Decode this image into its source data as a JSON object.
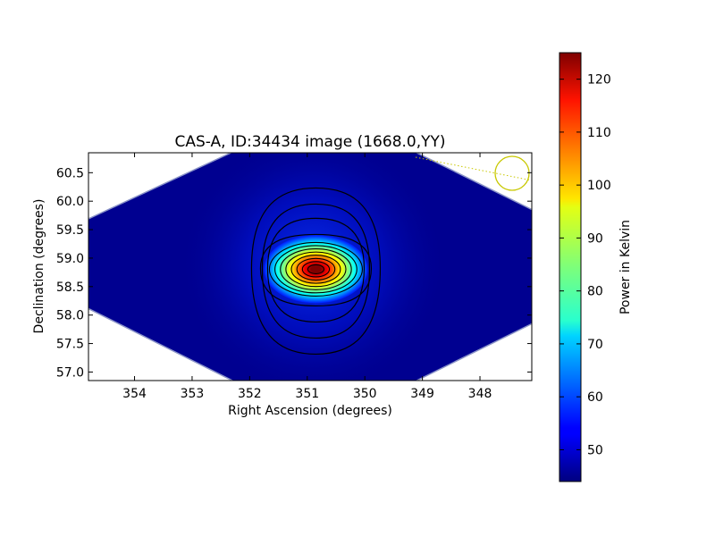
{
  "chart_data": {
    "type": "heatmap",
    "title": "CAS-A, ID:34434 image (1668.0,YY)",
    "xlabel": "Right Ascension (degrees)",
    "ylabel": "Declination (degrees)",
    "xlim": [
      354.8,
      347.1
    ],
    "ylim": [
      56.85,
      60.85
    ],
    "x_reversed": true,
    "xticks": [
      354,
      353,
      352,
      351,
      350,
      349,
      348
    ],
    "xtick_labels": [
      "354",
      "353",
      "352",
      "351",
      "350",
      "349",
      "348"
    ],
    "yticks": [
      57.0,
      57.5,
      58.0,
      58.5,
      59.0,
      59.5,
      60.0,
      60.5
    ],
    "ytick_labels": [
      "57.0",
      "57.5",
      "58.0",
      "58.5",
      "59.0",
      "59.5",
      "60.0",
      "60.5"
    ],
    "colormap": "jet",
    "colorbar": {
      "label": "Power in Kelvin",
      "min": 44,
      "max": 125,
      "ticks": [
        50,
        60,
        70,
        80,
        90,
        100,
        110,
        120
      ],
      "tick_labels": [
        "50",
        "60",
        "70",
        "80",
        "90",
        "100",
        "110",
        "120"
      ]
    },
    "source": {
      "name": "CAS-A",
      "ra_peak": 350.85,
      "dec_peak": 58.82,
      "peak_kelvin": 125
    },
    "background_kelvin": 45,
    "contour_count": 12,
    "contour_color": "#000000",
    "beam_marker_color": "#c8c800"
  }
}
